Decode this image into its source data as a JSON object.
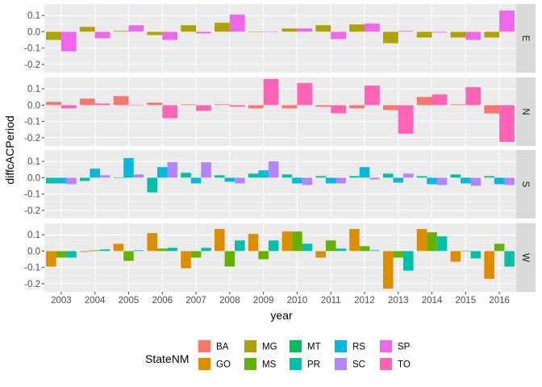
{
  "chart_data": {
    "type": "bar",
    "layout": "faceted-dodged-bars",
    "xlabel": "year",
    "ylabel": "diffcACPeriod",
    "years": [
      "2003",
      "2004",
      "2005",
      "2006",
      "2007",
      "2008",
      "2009",
      "2010",
      "2011",
      "2012",
      "2013",
      "2014",
      "2015",
      "2016"
    ],
    "ylim": [
      -0.25,
      0.17
    ],
    "yticks": [
      0.1,
      0.0,
      -0.1,
      -0.2
    ],
    "ytick_labels": [
      "0.1",
      "0.0",
      "-0.1",
      "-0.2"
    ],
    "legend": {
      "title": "StateNM",
      "position": "bottom",
      "entries": [
        {
          "name": "BA",
          "color": "#F8766D"
        },
        {
          "name": "GO",
          "color": "#DB8E00"
        },
        {
          "name": "MG",
          "color": "#AEA200"
        },
        {
          "name": "MS",
          "color": "#64B200"
        },
        {
          "name": "MT",
          "color": "#00BD5C"
        },
        {
          "name": "PR",
          "color": "#00C1A7"
        },
        {
          "name": "RS",
          "color": "#00BADE"
        },
        {
          "name": "SC",
          "color": "#B385FF"
        },
        {
          "name": "SP",
          "color": "#EF67EB"
        },
        {
          "name": "TO",
          "color": "#FF63B6"
        }
      ]
    },
    "facets": [
      {
        "label": "E",
        "series": [
          {
            "name": "MG",
            "values": [
              -0.05,
              0.03,
              0.005,
              -0.02,
              0.04,
              0.055,
              0.0,
              0.02,
              0.04,
              0.045,
              -0.07,
              -0.035,
              -0.035,
              -0.035
            ]
          },
          {
            "name": "SP",
            "values": [
              -0.12,
              -0.04,
              0.04,
              -0.05,
              -0.01,
              0.105,
              0.0,
              0.02,
              -0.045,
              0.05,
              0.005,
              -0.005,
              -0.05,
              0.13
            ]
          }
        ]
      },
      {
        "label": "N",
        "series": [
          {
            "name": "BA",
            "values": [
              0.02,
              0.04,
              0.055,
              0.015,
              0.005,
              0.005,
              -0.02,
              -0.02,
              -0.01,
              -0.02,
              -0.03,
              0.05,
              0.005,
              -0.05
            ]
          },
          {
            "name": "TO",
            "values": [
              -0.02,
              0.01,
              0.0,
              -0.08,
              -0.035,
              -0.01,
              0.16,
              0.135,
              -0.05,
              0.12,
              -0.175,
              0.065,
              0.11,
              -0.225
            ]
          }
        ]
      },
      {
        "label": "S",
        "series": [
          {
            "name": "PR",
            "values": [
              -0.035,
              -0.02,
              0.0,
              -0.09,
              0.03,
              0.015,
              0.025,
              0.02,
              0.01,
              0.01,
              0.025,
              0.01,
              0.02,
              0.01
            ]
          },
          {
            "name": "RS",
            "values": [
              -0.035,
              0.055,
              0.12,
              0.065,
              -0.035,
              -0.025,
              0.045,
              -0.035,
              -0.035,
              0.065,
              -0.03,
              -0.04,
              -0.035,
              -0.04
            ]
          },
          {
            "name": "SC",
            "values": [
              -0.04,
              0.015,
              0.02,
              0.095,
              0.095,
              -0.035,
              0.1,
              -0.045,
              -0.035,
              -0.01,
              0.025,
              -0.045,
              -0.05,
              -0.045
            ]
          }
        ]
      },
      {
        "label": "W",
        "series": [
          {
            "name": "GO",
            "values": [
              -0.095,
              -0.005,
              0.045,
              0.11,
              -0.105,
              0.135,
              0.105,
              0.12,
              -0.04,
              0.135,
              -0.23,
              0.135,
              -0.065,
              -0.17
            ]
          },
          {
            "name": "MS",
            "values": [
              -0.04,
              0.005,
              -0.06,
              0.015,
              -0.04,
              -0.095,
              -0.05,
              0.12,
              0.065,
              0.03,
              -0.04,
              0.115,
              0.0,
              0.045
            ]
          },
          {
            "name": "PR",
            "values": [
              -0.04,
              0.01,
              0.005,
              0.02,
              0.02,
              0.065,
              0.065,
              0.045,
              0.015,
              0.005,
              -0.12,
              0.09,
              -0.045,
              -0.095
            ]
          }
        ]
      }
    ]
  }
}
